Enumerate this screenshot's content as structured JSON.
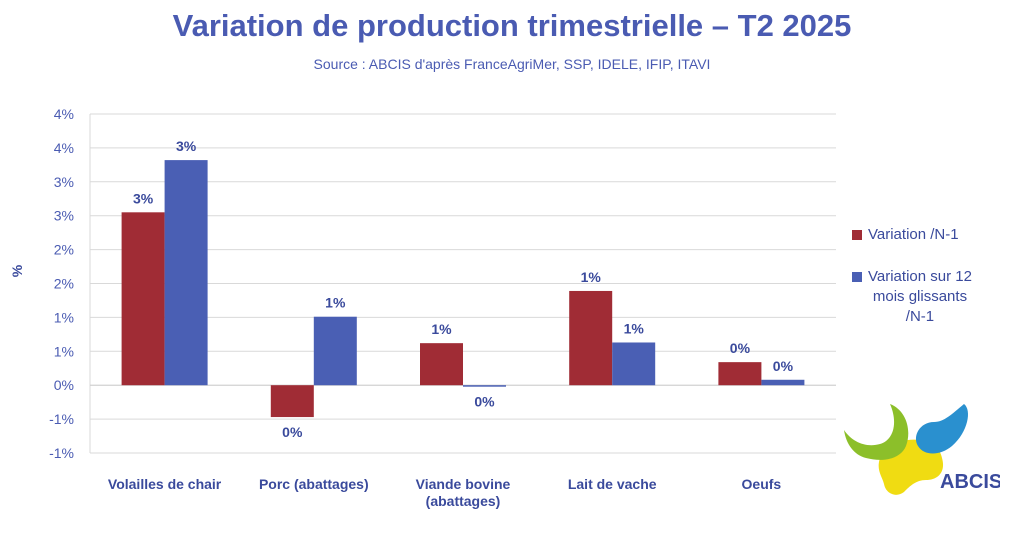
{
  "chart_data": {
    "type": "bar",
    "title": "Variation de production trimestrielle – T2 2025",
    "subtitle": "Source : ABCIS d'après FranceAgriMer, SSP, IDELE, IFIP, ITAVI",
    "ylabel": "%",
    "xlabel": "",
    "ylim": [
      -1.0,
      4.0
    ],
    "yticks": [
      4.0,
      3.5,
      3.0,
      2.5,
      2.0,
      1.5,
      1.0,
      0.5,
      0.0,
      -0.5,
      -1.0
    ],
    "ytick_labels": [
      "4%",
      "4%",
      "3%",
      "3%",
      "2%",
      "2%",
      "1%",
      "1%",
      "0%",
      "-1%",
      "-1%"
    ],
    "categories": [
      "Volailles de chair",
      "Porc (abattages)",
      "Viande bovine\n(abattages)",
      "Lait de vache",
      "Oeufs"
    ],
    "series": [
      {
        "name": "Variation /N-1",
        "color": "#a02c35",
        "values": [
          2.55,
          -0.47,
          0.62,
          1.39,
          0.34
        ],
        "labels": [
          "3%",
          "0%",
          "1%",
          "1%",
          "0%"
        ]
      },
      {
        "name": "Variation sur 12 mois glissants /N-1",
        "color": "#4a5fb4",
        "values": [
          3.32,
          1.01,
          -0.02,
          0.63,
          0.08
        ],
        "labels": [
          "3%",
          "1%",
          "0%",
          "1%",
          "0%"
        ]
      }
    ],
    "grid": true,
    "legend_position": "right"
  },
  "legend": {
    "items": [
      "Variation /N-1",
      "Variation sur 12\nmois glissants\n/N-1"
    ]
  },
  "logo": {
    "text": "ABCIS",
    "colors": {
      "green": "#8cbf2a",
      "blue": "#2a90cf",
      "yellow": "#f0dc12",
      "text": "#3a4a9c"
    }
  }
}
